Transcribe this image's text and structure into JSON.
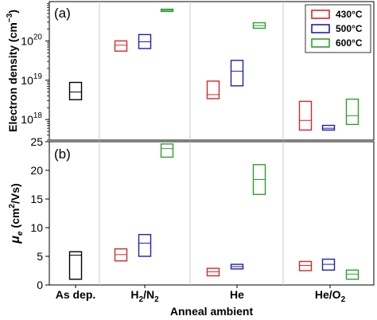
{
  "chart_data": [
    {
      "panel": "(a)",
      "type": "box",
      "ylabel_main": "Electron density (cm",
      "ylabel_sup": "−3",
      "ylabel_close": ")",
      "yscale": "log",
      "ylim": [
        3e+17,
        1e+21
      ],
      "yticks": [
        {
          "value": 1e+18,
          "base": "10",
          "exp": "18"
        },
        {
          "value": 1e+19,
          "base": "10",
          "exp": "19"
        },
        {
          "value": 1e+20,
          "base": "10",
          "exp": "20"
        }
      ],
      "categories": [
        "As dep.",
        "H2/N2",
        "He",
        "He/O2"
      ],
      "legend": {
        "placement": "top-right",
        "entries": [
          "430°C",
          "500°C",
          "600°C"
        ]
      },
      "boxes": [
        {
          "category": "As dep.",
          "series": "as-dep",
          "color": "#000000",
          "low": 3.2e+18,
          "median": 5e+18,
          "high": 8.8e+18
        },
        {
          "category": "H2/N2",
          "series": "430°C",
          "color": "#d62728",
          "low": 5.5e+19,
          "median": 7.8e+19,
          "high": 1e+20
        },
        {
          "category": "H2/N2",
          "series": "500°C",
          "color": "#1f1fb4",
          "low": 6.4e+19,
          "median": 9.5e+19,
          "high": 1.45e+20
        },
        {
          "category": "H2/N2",
          "series": "600°C",
          "color": "#2ca02c",
          "low": 5.6e+20,
          "median": 6e+20,
          "high": 6.4e+20
        },
        {
          "category": "He",
          "series": "430°C",
          "color": "#d62728",
          "low": 3.4e+18,
          "median": 4.3e+18,
          "high": 9.5e+18
        },
        {
          "category": "He",
          "series": "500°C",
          "color": "#1f1fb4",
          "low": 7.2e+18,
          "median": 1.7e+19,
          "high": 3.2e+19
        },
        {
          "category": "He",
          "series": "600°C",
          "color": "#2ca02c",
          "low": 2.1e+20,
          "median": 2.45e+20,
          "high": 2.9e+20
        },
        {
          "category": "He/O2",
          "series": "430°C",
          "color": "#d62728",
          "low": 5.4e+17,
          "median": 9.5e+17,
          "high": 2.9e+18
        },
        {
          "category": "He/O2",
          "series": "500°C",
          "color": "#1f1fb4",
          "low": 5.4e+17,
          "median": 6e+17,
          "high": 7.1e+17
        },
        {
          "category": "He/O2",
          "series": "600°C",
          "color": "#2ca02c",
          "low": 7.5e+17,
          "median": 1.25e+18,
          "high": 3.3e+18
        }
      ]
    },
    {
      "panel": "(b)",
      "type": "box",
      "ylabel_mu": "μ",
      "ylabel_sub": "e",
      "ylabel_unit": "(cm",
      "ylabel_sup": "2",
      "ylabel_tail": "/Vs)",
      "yscale": "linear",
      "ylim": [
        0,
        25
      ],
      "yticks": [
        0,
        5,
        10,
        15,
        20,
        25
      ],
      "categories": [
        "As dep.",
        "H2/N2",
        "He",
        "He/O2"
      ],
      "xlabel": "Anneal ambient",
      "boxes": [
        {
          "category": "As dep.",
          "series": "as-dep",
          "color": "#000000",
          "low": 1.0,
          "median": 5.2,
          "high": 5.8
        },
        {
          "category": "H2/N2",
          "series": "430°C",
          "color": "#d62728",
          "low": 4.2,
          "median": 5.3,
          "high": 6.3
        },
        {
          "category": "H2/N2",
          "series": "500°C",
          "color": "#1f1fb4",
          "low": 5.0,
          "median": 7.3,
          "high": 8.8
        },
        {
          "category": "H2/N2",
          "series": "600°C",
          "color": "#2ca02c",
          "low": 22.3,
          "median": 23.8,
          "high": 24.6
        },
        {
          "category": "He",
          "series": "430°C",
          "color": "#d62728",
          "low": 1.6,
          "median": 2.3,
          "high": 2.9
        },
        {
          "category": "He",
          "series": "500°C",
          "color": "#1f1fb4",
          "low": 2.8,
          "median": 3.2,
          "high": 3.6
        },
        {
          "category": "He",
          "series": "600°C",
          "color": "#2ca02c",
          "low": 15.8,
          "median": 18.4,
          "high": 21.0
        },
        {
          "category": "He/O2",
          "series": "430°C",
          "color": "#d62728",
          "low": 2.5,
          "median": 3.4,
          "high": 4.1
        },
        {
          "category": "He/O2",
          "series": "500°C",
          "color": "#1f1fb4",
          "low": 2.6,
          "median": 3.6,
          "high": 4.5
        },
        {
          "category": "He/O2",
          "series": "600°C",
          "color": "#2ca02c",
          "low": 1.0,
          "median": 1.9,
          "high": 2.6
        }
      ]
    }
  ],
  "category_labels": {
    "as_dep": "As dep.",
    "h2n2": {
      "a": "H",
      "a_sub": "2",
      "slash": "/N",
      "b_sub": "2"
    },
    "he": "He",
    "heo2": {
      "a": "He/O",
      "a_sub": "2"
    }
  }
}
